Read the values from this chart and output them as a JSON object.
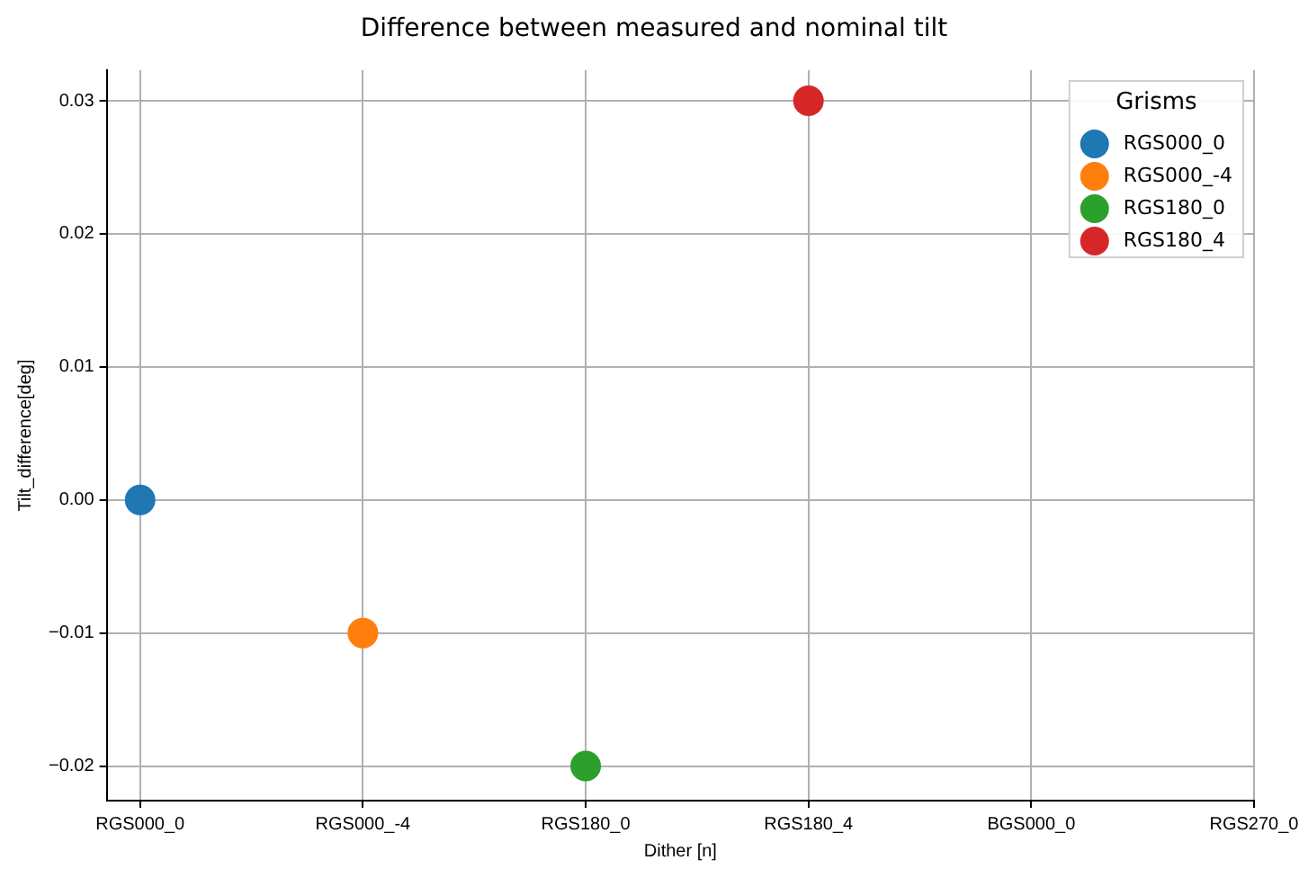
{
  "chart_data": {
    "type": "scatter",
    "title": "Difference between measured and nominal tilt",
    "xlabel": "Dither [n]",
    "ylabel": "Tilt_difference[deg]",
    "legend_title": "Grisms",
    "categories": [
      "RGS000_0",
      "RGS000_-4",
      "RGS180_0",
      "RGS180_4",
      "BGS000_0",
      "RGS270_0"
    ],
    "series": [
      {
        "name": "RGS000_0",
        "color": "#1f77b4",
        "x": [
          "RGS000_0"
        ],
        "values": [
          0.0
        ]
      },
      {
        "name": "RGS000_-4",
        "color": "#ff7f0e",
        "x": [
          "RGS000_-4"
        ],
        "values": [
          -0.01
        ]
      },
      {
        "name": "RGS180_0",
        "color": "#2ca02c",
        "x": [
          "RGS180_0"
        ],
        "values": [
          -0.02
        ]
      },
      {
        "name": "RGS180_4",
        "color": "#d62728",
        "x": [
          "RGS180_4"
        ],
        "values": [
          0.03
        ]
      }
    ],
    "ylim": [
      -0.0226,
      0.0323
    ],
    "yticks": [
      {
        "value": -0.02,
        "label": "−0.02"
      },
      {
        "value": -0.01,
        "label": "−0.01"
      },
      {
        "value": 0,
        "label": "0.00"
      },
      0.01,
      0.02,
      0.03
    ],
    "grid": true,
    "legend": "top right",
    "marker": "circle"
  }
}
